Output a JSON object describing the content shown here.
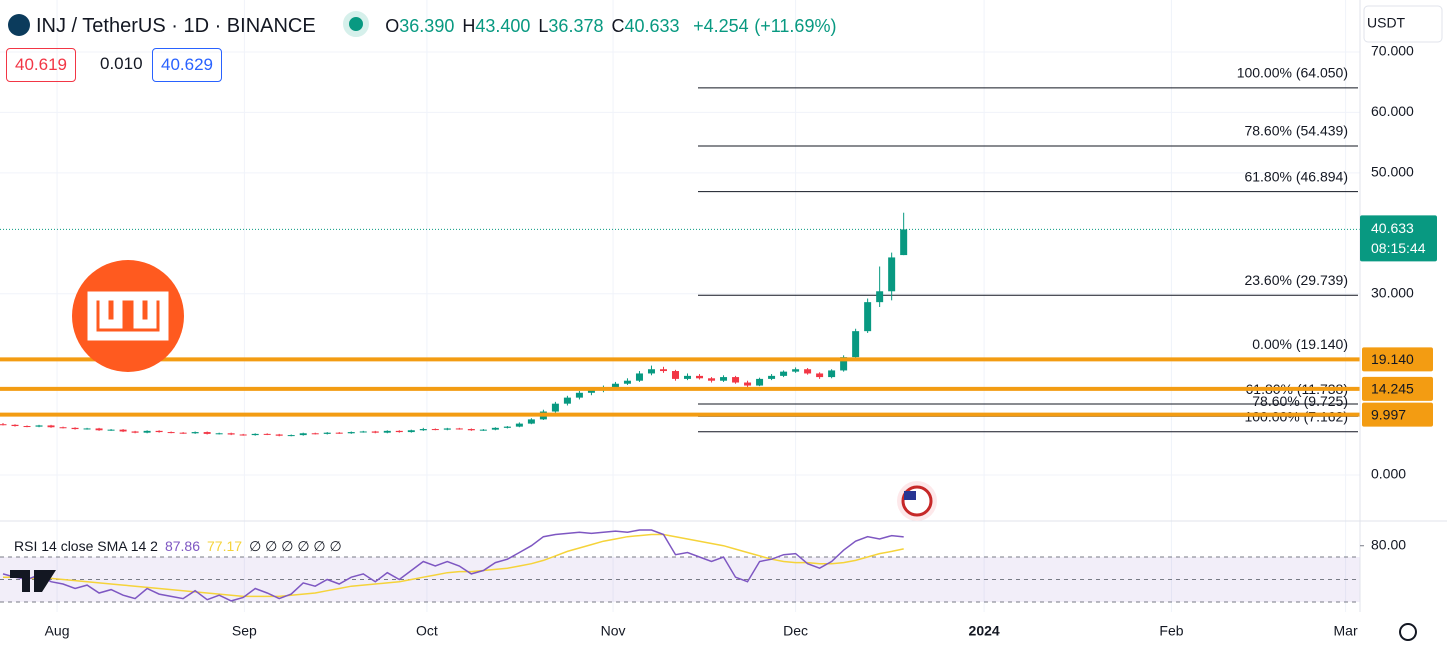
{
  "header": {
    "symbol": "INJ / TetherUS · 1D · BINANCE",
    "ohlc": [
      {
        "key": "O",
        "value": "36.390"
      },
      {
        "key": "H",
        "value": "43.400"
      },
      {
        "key": "L",
        "value": "36.378"
      },
      {
        "key": "C",
        "value": "40.633"
      }
    ],
    "change": "+4.254",
    "change_pct": "(+11.69%)",
    "sell": "40.619",
    "spread": "0.010",
    "buy": "40.629",
    "currency": "USDT"
  },
  "chart_data": {
    "type": "candlestick",
    "up_color": "#089981",
    "down_color": "#f23645",
    "ohlc": [
      [
        8.4,
        8.6,
        8.2,
        8.3
      ],
      [
        8.3,
        8.4,
        8.0,
        8.1
      ],
      [
        8.1,
        8.2,
        7.9,
        8.0
      ],
      [
        8.0,
        8.3,
        7.9,
        8.2
      ],
      [
        8.2,
        8.3,
        7.8,
        7.9
      ],
      [
        7.9,
        8.0,
        7.7,
        7.8
      ],
      [
        7.8,
        7.9,
        7.5,
        7.6
      ],
      [
        7.6,
        7.8,
        7.5,
        7.7
      ],
      [
        7.7,
        7.8,
        7.3,
        7.4
      ],
      [
        7.4,
        7.6,
        7.3,
        7.5
      ],
      [
        7.5,
        7.6,
        7.1,
        7.2
      ],
      [
        7.2,
        7.3,
        6.9,
        7.0
      ],
      [
        7.0,
        7.4,
        6.9,
        7.3
      ],
      [
        7.3,
        7.4,
        7.0,
        7.1
      ],
      [
        7.1,
        7.2,
        6.9,
        7.0
      ],
      [
        7.0,
        7.1,
        6.8,
        6.9
      ],
      [
        6.9,
        7.2,
        6.8,
        7.1
      ],
      [
        7.1,
        7.2,
        6.7,
        6.8
      ],
      [
        6.8,
        7.0,
        6.7,
        6.9
      ],
      [
        6.9,
        7.0,
        6.6,
        6.7
      ],
      [
        6.7,
        6.8,
        6.5,
        6.6
      ],
      [
        6.6,
        6.9,
        6.5,
        6.8
      ],
      [
        6.8,
        6.9,
        6.6,
        6.7
      ],
      [
        6.7,
        6.8,
        6.4,
        6.5
      ],
      [
        6.5,
        6.7,
        6.4,
        6.6
      ],
      [
        6.6,
        7.0,
        6.5,
        6.9
      ],
      [
        6.9,
        7.0,
        6.7,
        6.8
      ],
      [
        6.8,
        7.1,
        6.7,
        7.0
      ],
      [
        7.0,
        7.1,
        6.8,
        6.9
      ],
      [
        6.9,
        7.2,
        6.8,
        7.1
      ],
      [
        7.1,
        7.3,
        7.0,
        7.2
      ],
      [
        7.2,
        7.3,
        6.9,
        7.0
      ],
      [
        7.0,
        7.4,
        6.9,
        7.3
      ],
      [
        7.3,
        7.4,
        7.0,
        7.1
      ],
      [
        7.1,
        7.5,
        7.0,
        7.4
      ],
      [
        7.4,
        7.8,
        7.3,
        7.6
      ],
      [
        7.6,
        7.7,
        7.4,
        7.5
      ],
      [
        7.5,
        7.8,
        7.4,
        7.7
      ],
      [
        7.7,
        7.8,
        7.5,
        7.6
      ],
      [
        7.6,
        7.7,
        7.3,
        7.4
      ],
      [
        7.4,
        7.6,
        7.3,
        7.5
      ],
      [
        7.5,
        7.9,
        7.4,
        7.8
      ],
      [
        7.8,
        8.1,
        7.7,
        8.0
      ],
      [
        8.0,
        8.7,
        7.9,
        8.5
      ],
      [
        8.5,
        9.4,
        8.4,
        9.2
      ],
      [
        9.2,
        10.8,
        9.1,
        10.5
      ],
      [
        10.5,
        12.1,
        10.3,
        11.8
      ],
      [
        11.8,
        13.1,
        11.5,
        12.8
      ],
      [
        12.8,
        13.9,
        12.5,
        13.6
      ],
      [
        13.6,
        14.3,
        13.2,
        14.0
      ],
      [
        14.0,
        14.8,
        13.7,
        14.5
      ],
      [
        14.5,
        15.4,
        14.2,
        15.1
      ],
      [
        15.1,
        16.0,
        14.9,
        15.6
      ],
      [
        15.6,
        17.2,
        15.4,
        16.8
      ],
      [
        16.8,
        18.1,
        16.5,
        17.5
      ],
      [
        17.5,
        17.9,
        16.9,
        17.2
      ],
      [
        17.2,
        17.4,
        15.6,
        15.9
      ],
      [
        15.9,
        16.8,
        15.7,
        16.4
      ],
      [
        16.4,
        16.7,
        15.8,
        16.0
      ],
      [
        16.0,
        16.2,
        15.3,
        15.6
      ],
      [
        15.6,
        16.5,
        15.4,
        16.2
      ],
      [
        16.2,
        16.4,
        15.1,
        15.3
      ],
      [
        15.3,
        15.6,
        14.5,
        14.8
      ],
      [
        14.8,
        16.1,
        14.7,
        15.9
      ],
      [
        15.9,
        16.7,
        15.7,
        16.4
      ],
      [
        16.4,
        17.3,
        16.2,
        17.1
      ],
      [
        17.1,
        17.8,
        16.9,
        17.5
      ],
      [
        17.5,
        17.7,
        16.6,
        16.8
      ],
      [
        16.8,
        17.0,
        15.9,
        16.2
      ],
      [
        16.2,
        17.5,
        16.0,
        17.3
      ],
      [
        17.3,
        19.8,
        17.1,
        19.5
      ],
      [
        19.5,
        24.2,
        19.3,
        23.8
      ],
      [
        23.8,
        29.2,
        23.5,
        28.6
      ],
      [
        28.6,
        34.5,
        27.8,
        30.4
      ],
      [
        30.4,
        36.8,
        28.9,
        36.0
      ],
      [
        36.39,
        43.4,
        36.378,
        40.633
      ]
    ],
    "ylim": [
      -7.45,
      78.6
    ],
    "yticks": [
      {
        "value": 0,
        "label": "0.000"
      },
      {
        "value": 30,
        "label": "30.000"
      },
      {
        "value": 50,
        "label": "50.000"
      },
      {
        "value": 60,
        "label": "60.000"
      },
      {
        "value": 70,
        "label": "70.000"
      }
    ],
    "xlim": [
      -0.25,
      113
    ],
    "xticks": [
      {
        "value": 4.5,
        "label": "Aug"
      },
      {
        "value": 20.1,
        "label": "Sep"
      },
      {
        "value": 35.3,
        "label": "Oct"
      },
      {
        "value": 50.8,
        "label": "Nov"
      },
      {
        "value": 66,
        "label": "Dec"
      },
      {
        "value": 81.7,
        "label": "2024"
      },
      {
        "value": 97.3,
        "label": "Feb"
      },
      {
        "value": 111.8,
        "label": "Mar"
      }
    ],
    "levels": {
      "color": "#f39c12",
      "values": [
        19.14,
        14.245,
        9.997
      ],
      "value_labels": [
        "19.140",
        "14.245",
        "9.997"
      ]
    },
    "fib": {
      "values": [
        64.05,
        54.439,
        46.894,
        29.739,
        19.14,
        11.738,
        9.725,
        7.162
      ],
      "labels": [
        "100.00% (64.050)",
        "78.60% (54.439)",
        "61.80% (46.894)",
        "23.60% (29.739)",
        "0.00% (19.140)",
        "61.80% (11.738)",
        "78.60% (9.725)",
        "100.00% (7.162)"
      ]
    },
    "last_price": {
      "value": 40.633,
      "label": "40.633",
      "countdown": "08:15:44"
    },
    "rsi": {
      "title": "RSI 14 close SMA 14 2",
      "value_label": "87.86",
      "sma_label": "77.17",
      "na": "∅ ∅ ∅ ∅ ∅ ∅",
      "color": "#7e57c2",
      "sma_color": "#f5d33a",
      "values": [
        55,
        52,
        50,
        54,
        48,
        46,
        42,
        45,
        38,
        41,
        36,
        33,
        42,
        37,
        35,
        33,
        40,
        32,
        36,
        31,
        34,
        42,
        38,
        33,
        37,
        47,
        44,
        50,
        46,
        52,
        55,
        48,
        56,
        50,
        58,
        66,
        62,
        66,
        62,
        55,
        58,
        65,
        68,
        74,
        80,
        88,
        90,
        91,
        92,
        91,
        92,
        93,
        92,
        94,
        94,
        90,
        72,
        74,
        70,
        66,
        70,
        52,
        48,
        66,
        68,
        72,
        73,
        64,
        60,
        66,
        76,
        84,
        88,
        86,
        89,
        87.86
      ],
      "sma": [
        52,
        52,
        51,
        51,
        51,
        50,
        49,
        48,
        47,
        46,
        45,
        44,
        43,
        42,
        41,
        40,
        39,
        38,
        37,
        36,
        35,
        35,
        35,
        35,
        36,
        37,
        38,
        40,
        42,
        44,
        45,
        46,
        47,
        48,
        50,
        52,
        54,
        56,
        57,
        57,
        58,
        59,
        60,
        62,
        64,
        67,
        71,
        75,
        78,
        81,
        84,
        86,
        88,
        89,
        90,
        90,
        88,
        86,
        84,
        82,
        80,
        77,
        74,
        71,
        68,
        66,
        65,
        65,
        64,
        64,
        65,
        67,
        70,
        73,
        75,
        77.17
      ],
      "ylim": [
        21.1,
        101.1
      ],
      "yticks": [
        {
          "value": 80,
          "label": "80.00"
        }
      ],
      "levels": [
        70,
        50,
        30
      ]
    }
  }
}
